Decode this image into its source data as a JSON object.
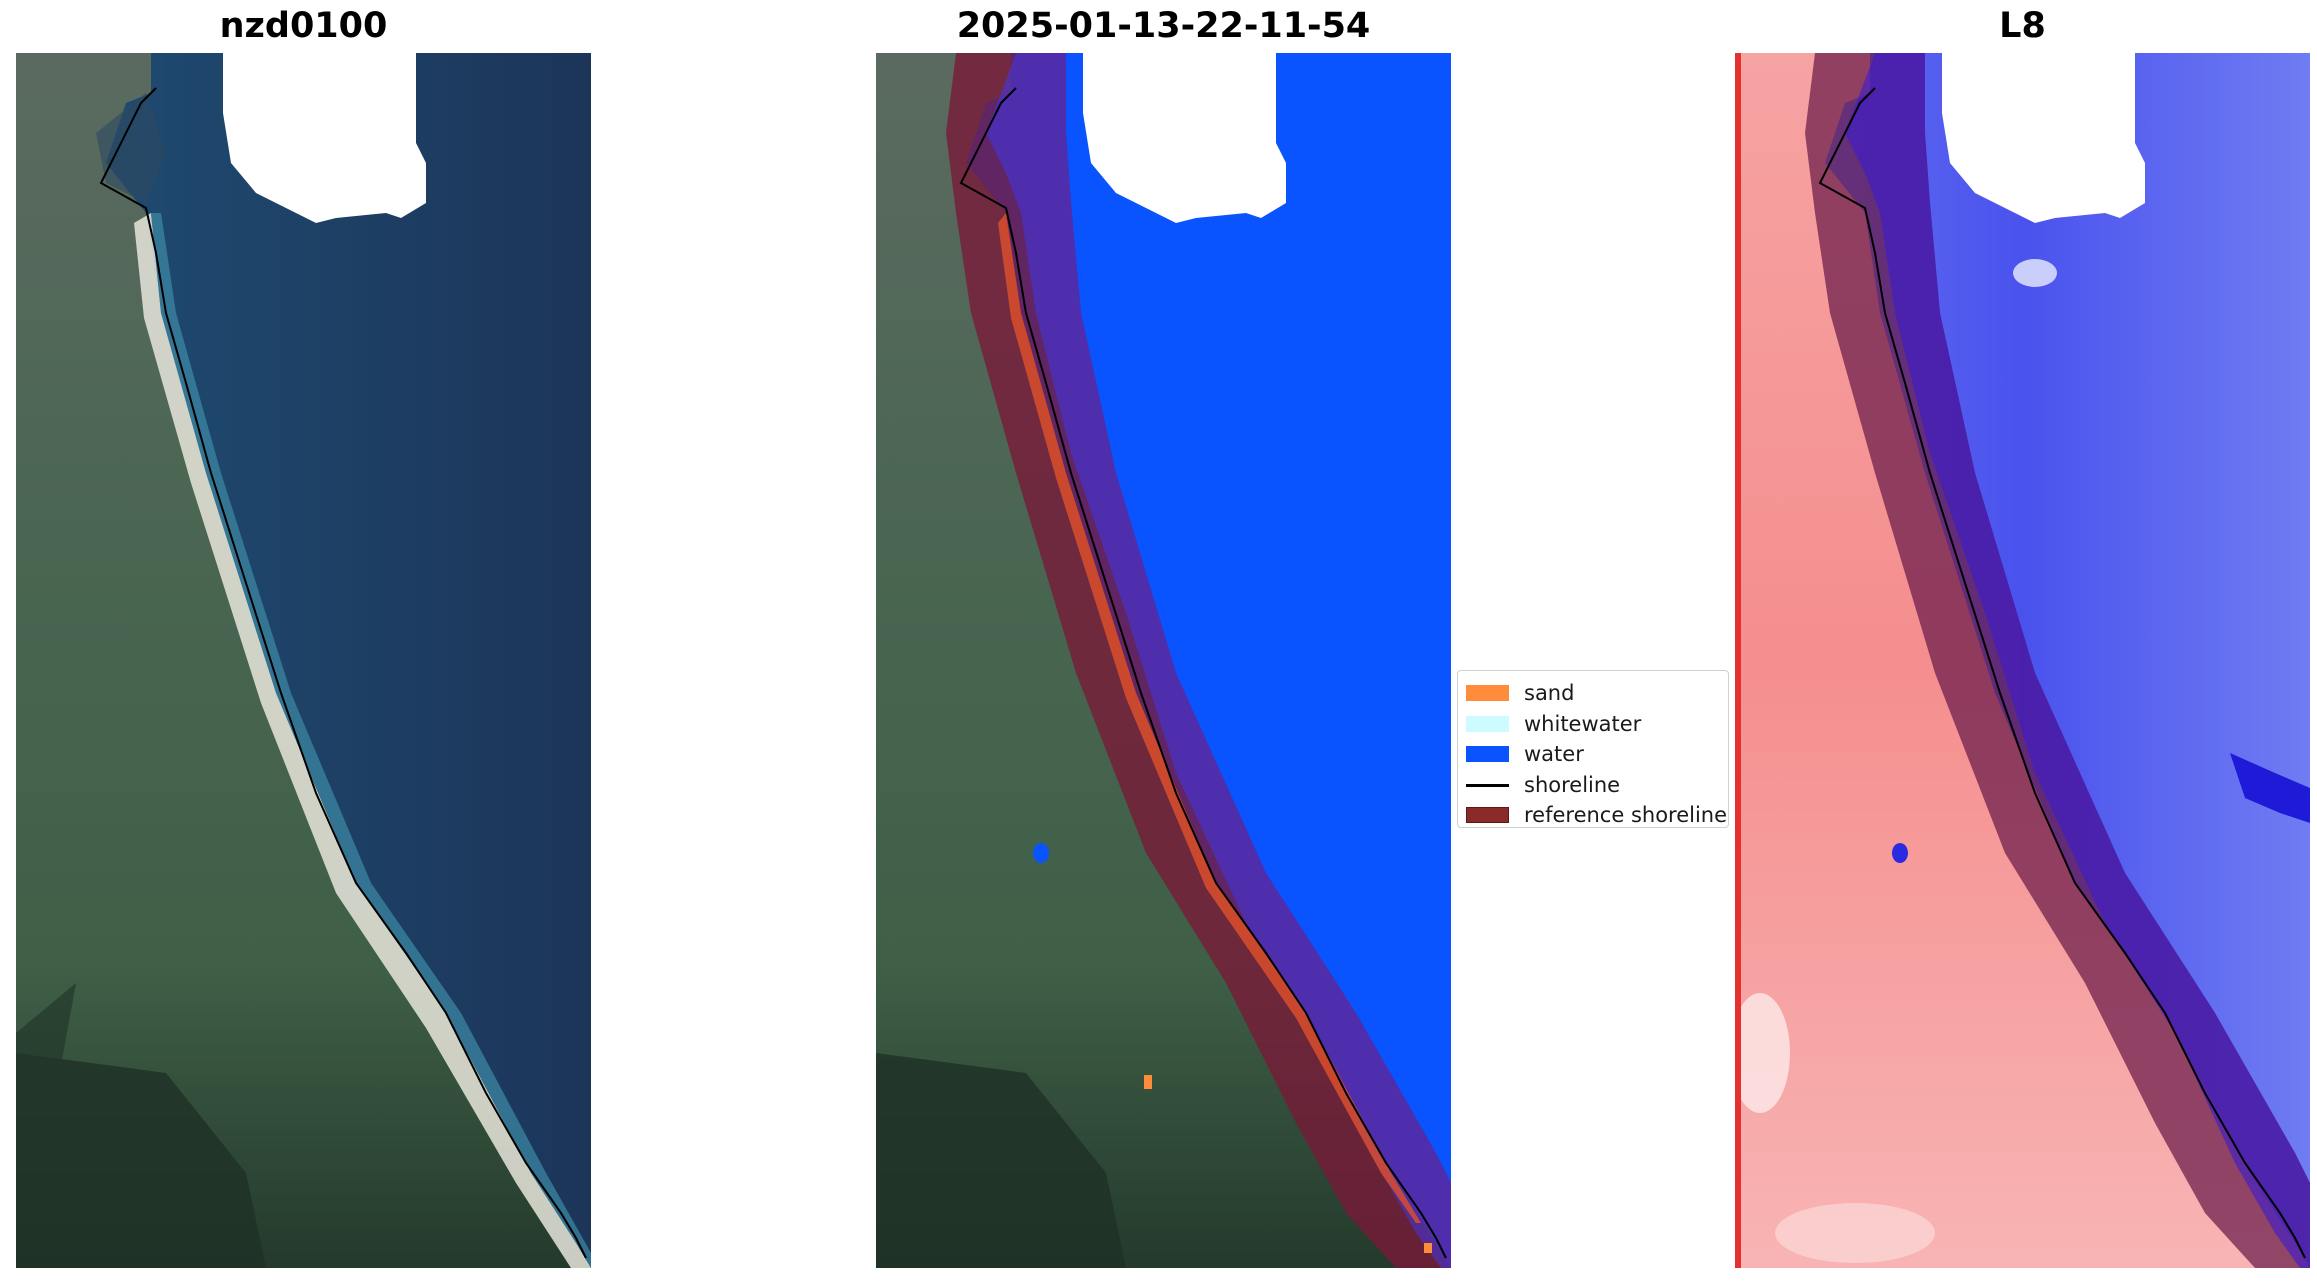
{
  "titles": {
    "left": "nzd0100",
    "middle": "2025-01-13-22-11-54",
    "right": "L8"
  },
  "legend": {
    "items": [
      {
        "label": "sand",
        "color": "#ff8c3a",
        "kind": "patch"
      },
      {
        "label": "whitewater",
        "color": "#ccfcff",
        "kind": "patch"
      },
      {
        "label": "water",
        "color": "#0a54ff",
        "kind": "patch"
      },
      {
        "label": "shoreline",
        "color": "#000000",
        "kind": "line"
      },
      {
        "label": "reference shoreline",
        "color": "#8b2a2a",
        "kind": "patch"
      }
    ]
  },
  "colors": {
    "sea_true_color": "#1f3a63",
    "land_true_color": "#3c5a45",
    "sand_true_color": "#e9e6dc",
    "water_class": "#0a54ff",
    "reference_buffer": "#7a1838",
    "mndwi_land": "#f7a0a0",
    "mndwi_water": "#3f36e8",
    "cloud_mask": "#ffffff"
  }
}
